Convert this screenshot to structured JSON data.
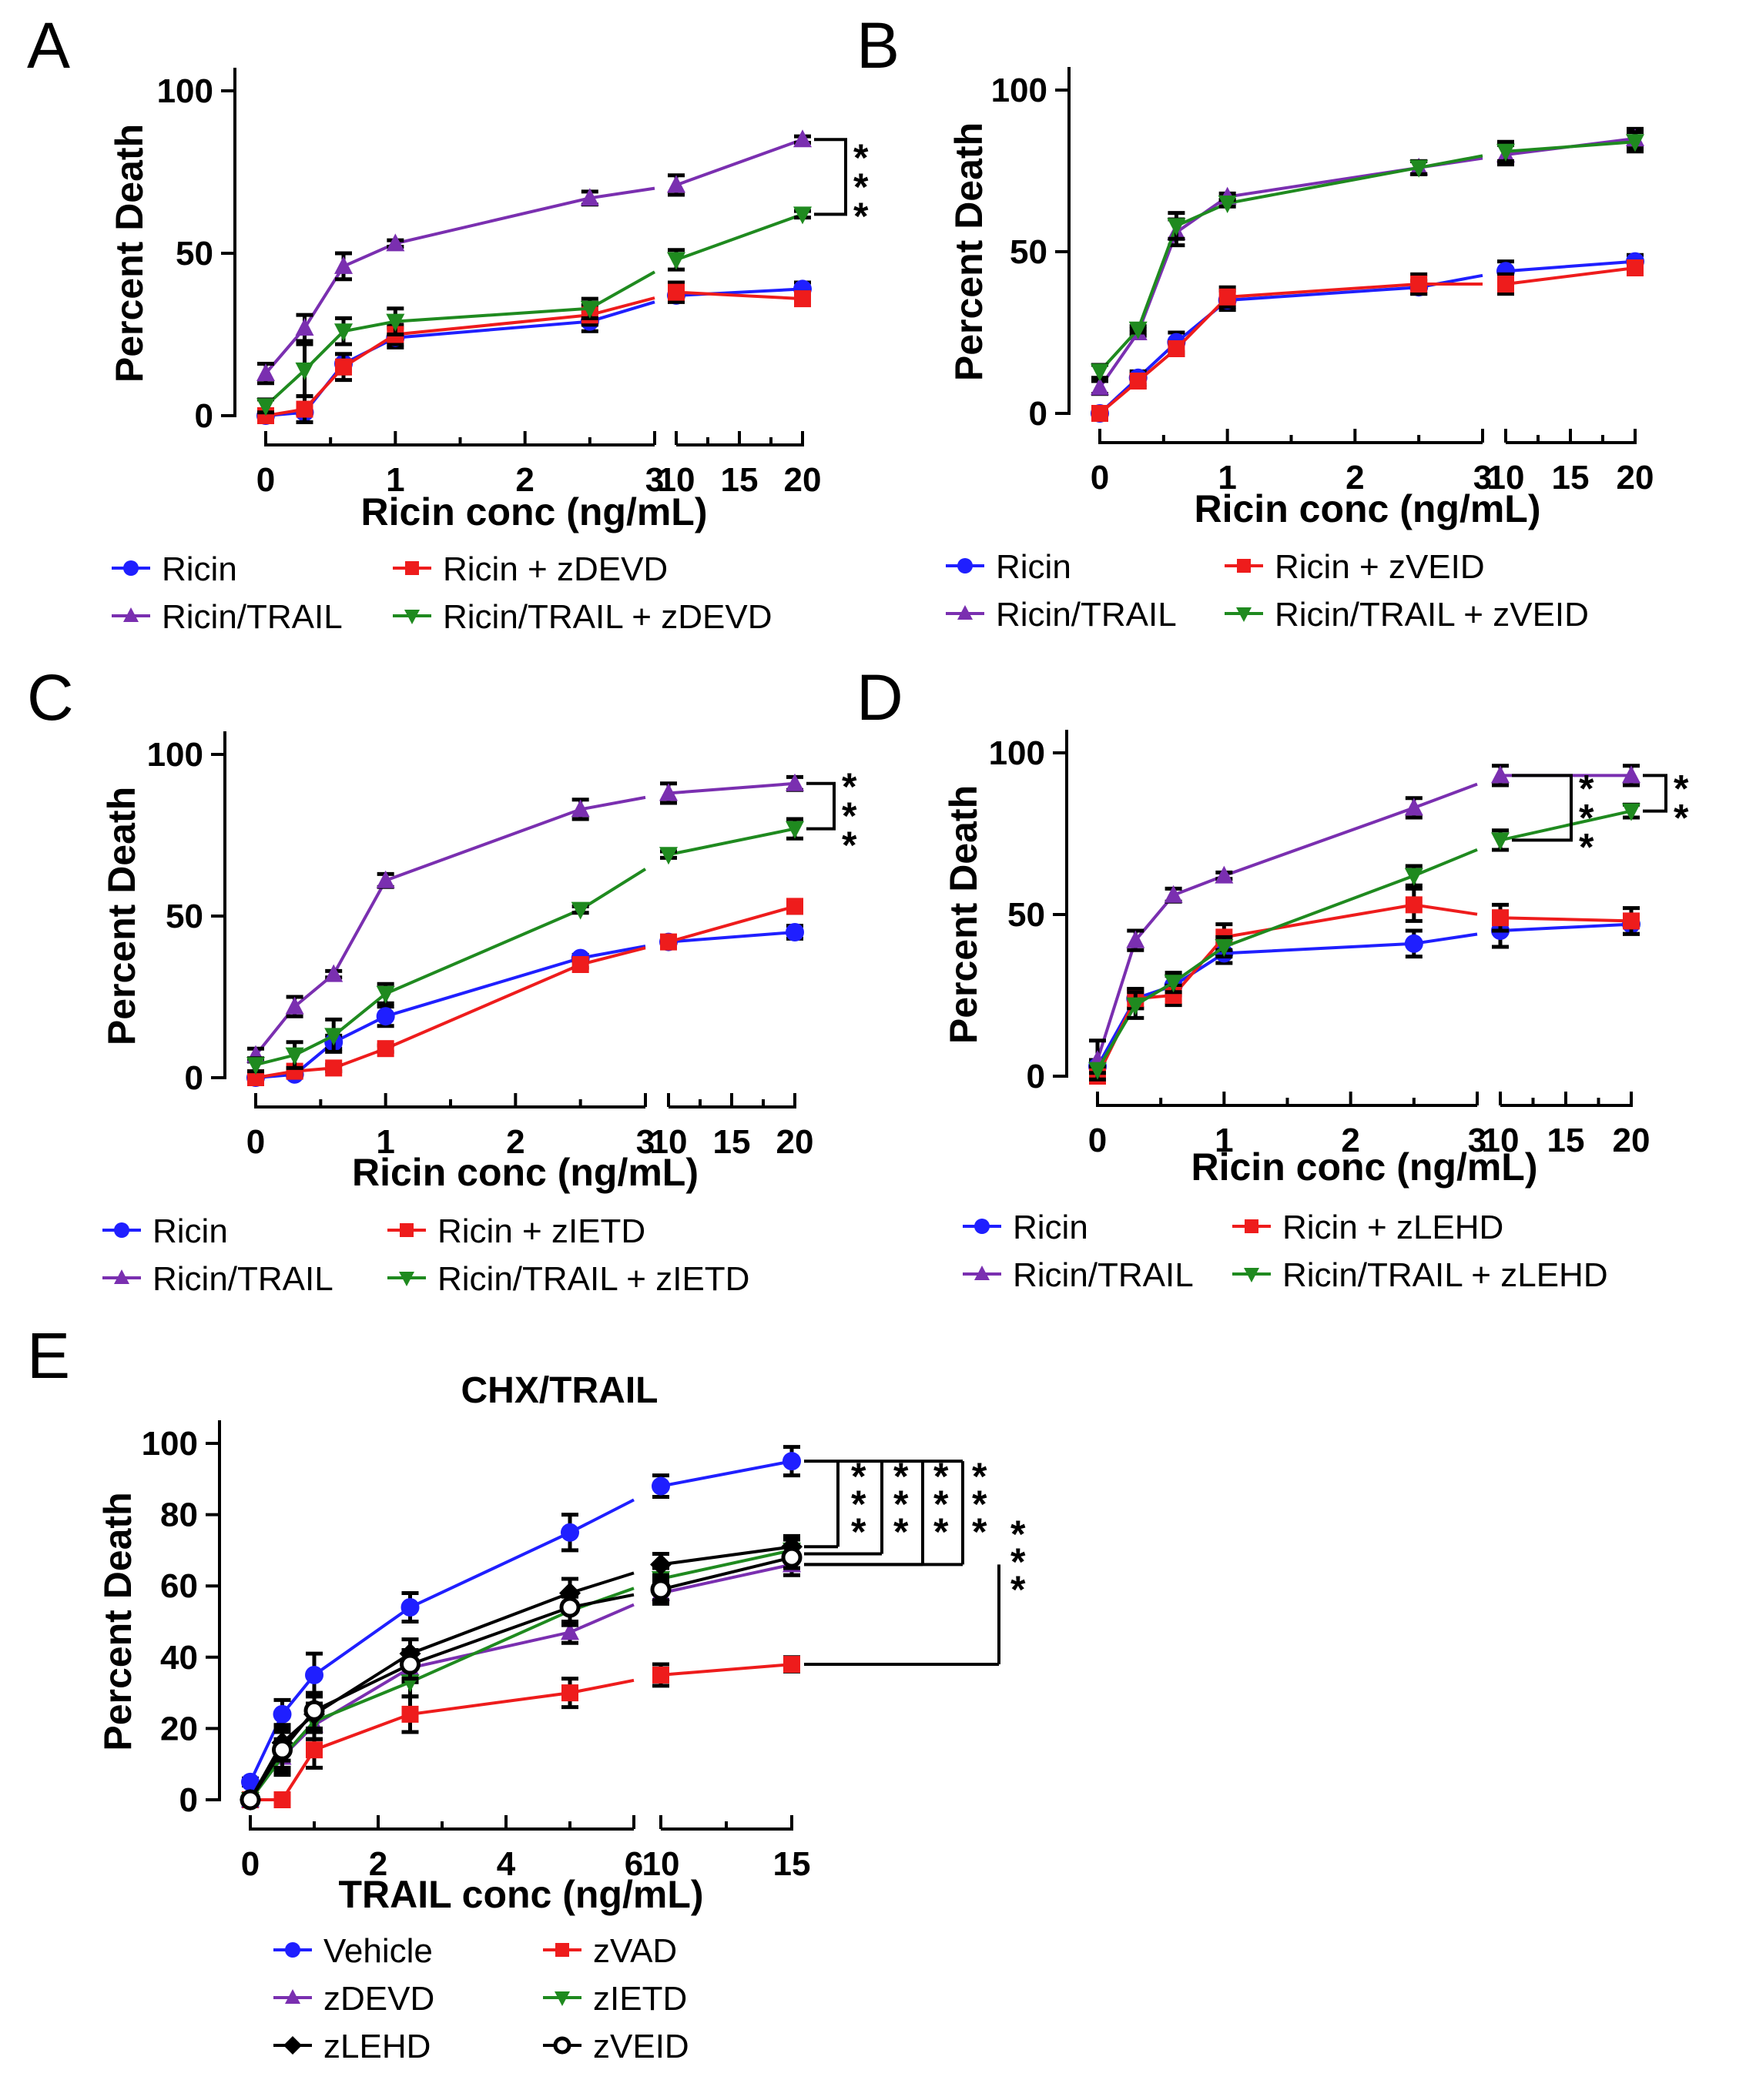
{
  "chart_data": [
    {
      "panel": "A",
      "type": "line",
      "title": "",
      "xlabel": "Ricin conc (ng/mL)",
      "ylabel": "Percent Death",
      "ylim": [
        0,
        100
      ],
      "yticks": [
        "0",
        "50",
        "100"
      ],
      "x_segments": [
        {
          "range": [
            0,
            3
          ],
          "ticks": [
            "0",
            "1",
            "2",
            "3"
          ]
        },
        {
          "range": [
            10,
            20
          ],
          "ticks": [
            "10",
            "15",
            "20"
          ]
        }
      ],
      "x": [
        0,
        0.3,
        0.6,
        1,
        2.5,
        10,
        20
      ],
      "series": [
        {
          "name": "Ricin",
          "marker": "circle",
          "color": "#1f1fff",
          "values": [
            0,
            1,
            16,
            24,
            29,
            37,
            39
          ],
          "err": [
            1,
            1,
            3,
            3,
            3,
            2,
            2
          ]
        },
        {
          "name": "Ricin + zDEVD",
          "marker": "square",
          "color": "#ee1c1c",
          "values": [
            0,
            2,
            15,
            25,
            31,
            38,
            36
          ],
          "err": [
            1,
            4,
            4,
            3,
            3,
            3,
            2
          ]
        },
        {
          "name": "Ricin/TRAIL",
          "marker": "triangle-up",
          "color": "#7a2fb0",
          "values": [
            13,
            27,
            46,
            53,
            67,
            71,
            85
          ],
          "err": [
            3,
            4,
            4,
            1,
            2,
            3,
            1
          ]
        },
        {
          "name": "Ricin/TRAIL + zDEVD",
          "marker": "triangle-down",
          "color": "#1f8a1f",
          "values": [
            3,
            14,
            26,
            29,
            33,
            48,
            62
          ],
          "err": [
            2,
            8,
            4,
            4,
            3,
            3,
            1
          ]
        }
      ],
      "significance": [
        "***"
      ],
      "legend": "bottom"
    },
    {
      "panel": "B",
      "type": "line",
      "title": "",
      "xlabel": "Ricin conc (ng/mL)",
      "ylabel": "Percent Death",
      "ylim": [
        0,
        100
      ],
      "yticks": [
        "0",
        "50",
        "100"
      ],
      "x_segments": [
        {
          "range": [
            0,
            3
          ],
          "ticks": [
            "0",
            "1",
            "2",
            "3"
          ]
        },
        {
          "range": [
            10,
            20
          ],
          "ticks": [
            "10",
            "15",
            "20"
          ]
        }
      ],
      "x": [
        0,
        0.3,
        0.6,
        1,
        2.5,
        10,
        20
      ],
      "series": [
        {
          "name": "Ricin",
          "marker": "circle",
          "color": "#1f1fff",
          "values": [
            0,
            11,
            22,
            35,
            39,
            44,
            47
          ],
          "err": [
            1,
            2,
            3,
            3,
            2,
            3,
            2
          ]
        },
        {
          "name": "Ricin + zVEID",
          "marker": "square",
          "color": "#ee1c1c",
          "values": [
            0,
            10,
            20,
            36,
            40,
            40,
            45
          ],
          "err": [
            1,
            2,
            2,
            3,
            3,
            3,
            2
          ]
        },
        {
          "name": "Ricin/TRAIL",
          "marker": "triangle-up",
          "color": "#7a2fb0",
          "values": [
            8,
            25,
            56,
            67,
            76,
            80,
            85
          ],
          "err": [
            2,
            1,
            4,
            1,
            2,
            3,
            3
          ]
        },
        {
          "name": "Ricin/TRAIL + zVEID",
          "marker": "triangle-down",
          "color": "#1f8a1f",
          "values": [
            13,
            26,
            58,
            65,
            76,
            81,
            84
          ],
          "err": [
            2,
            1,
            4,
            1,
            2,
            3,
            3
          ]
        }
      ],
      "significance": [],
      "legend": "bottom"
    },
    {
      "panel": "C",
      "type": "line",
      "title": "",
      "xlabel": "Ricin conc (ng/mL)",
      "ylabel": "Percent Death",
      "ylim": [
        0,
        100
      ],
      "yticks": [
        "0",
        "50",
        "100"
      ],
      "x_segments": [
        {
          "range": [
            0,
            3
          ],
          "ticks": [
            "0",
            "1",
            "2",
            "3"
          ]
        },
        {
          "range": [
            10,
            20
          ],
          "ticks": [
            "10",
            "15",
            "20"
          ]
        }
      ],
      "x": [
        0,
        0.3,
        0.6,
        1,
        2.5,
        10,
        20
      ],
      "series": [
        {
          "name": "Ricin",
          "marker": "circle",
          "color": "#1f1fff",
          "values": [
            0,
            1,
            11,
            19,
            37,
            42,
            45
          ],
          "err": [
            1,
            1,
            2,
            3,
            1,
            1,
            2
          ]
        },
        {
          "name": "Ricin + zIETD",
          "marker": "square",
          "color": "#ee1c1c",
          "values": [
            0,
            2,
            3,
            9,
            35,
            42,
            53
          ],
          "err": [
            1,
            1,
            1,
            1,
            1,
            1,
            2
          ]
        },
        {
          "name": "Ricin/TRAIL",
          "marker": "triangle-up",
          "color": "#7a2fb0",
          "values": [
            7,
            22,
            32,
            61,
            83,
            88,
            91
          ],
          "err": [
            2,
            3,
            1,
            2,
            3,
            3,
            2
          ]
        },
        {
          "name": "Ricin/TRAIL + zIETD",
          "marker": "triangle-down",
          "color": "#1f8a1f",
          "values": [
            4,
            7,
            13,
            26,
            52,
            69,
            77
          ],
          "err": [
            2,
            4,
            5,
            3,
            1,
            1,
            3
          ]
        }
      ],
      "significance": [
        "***"
      ],
      "legend": "bottom"
    },
    {
      "panel": "D",
      "type": "line",
      "title": "",
      "xlabel": "Ricin conc (ng/mL)",
      "ylabel": "Percent Death",
      "ylim": [
        0,
        100
      ],
      "yticks": [
        "0",
        "50",
        "100"
      ],
      "x_segments": [
        {
          "range": [
            0,
            3
          ],
          "ticks": [
            "0",
            "1",
            "2",
            "3"
          ]
        },
        {
          "range": [
            10,
            20
          ],
          "ticks": [
            "10",
            "15",
            "20"
          ]
        }
      ],
      "x": [
        0,
        0.3,
        0.6,
        1,
        2.5,
        10,
        20
      ],
      "series": [
        {
          "name": "Ricin",
          "marker": "circle",
          "color": "#1f1fff",
          "values": [
            3,
            24,
            28,
            38,
            41,
            45,
            47
          ],
          "err": [
            2,
            3,
            3,
            3,
            4,
            5,
            3
          ]
        },
        {
          "name": "Ricin + zLEHD",
          "marker": "square",
          "color": "#ee1c1c",
          "values": [
            0,
            24,
            25,
            43,
            53,
            49,
            48
          ],
          "err": [
            1,
            3,
            3,
            4,
            5,
            4,
            4
          ]
        },
        {
          "name": "Ricin/TRAIL",
          "marker": "triangle-up",
          "color": "#7a2fb0",
          "values": [
            5,
            42,
            56,
            62,
            83,
            93,
            93
          ],
          "err": [
            6,
            3,
            2,
            1,
            3,
            3,
            3
          ]
        },
        {
          "name": "Ricin/TRAIL + zLEHD",
          "marker": "triangle-down",
          "color": "#1f8a1f",
          "values": [
            2,
            22,
            29,
            40,
            62,
            73,
            82
          ],
          "err": [
            1,
            4,
            3,
            3,
            3,
            3,
            2
          ]
        }
      ],
      "significance": [
        "***",
        "**"
      ],
      "legend": "bottom"
    },
    {
      "panel": "E",
      "type": "line",
      "title": "CHX/TRAIL",
      "xlabel": "TRAIL conc (ng/mL)",
      "ylabel": "Percent Death",
      "ylim": [
        0,
        100
      ],
      "yticks": [
        "0",
        "20",
        "40",
        "60",
        "80",
        "100"
      ],
      "x_segments": [
        {
          "range": [
            0,
            6
          ],
          "ticks": [
            "0",
            "2",
            "4",
            "6"
          ]
        },
        {
          "range": [
            10,
            15
          ],
          "ticks": [
            "10",
            "15"
          ]
        }
      ],
      "x": [
        0,
        0.5,
        1,
        2.5,
        5,
        10,
        15
      ],
      "series": [
        {
          "name": "Vehicle",
          "marker": "circle",
          "color": "#1f1fff",
          "values": [
            5,
            24,
            35,
            54,
            75,
            88,
            95
          ],
          "err": [
            1,
            4,
            6,
            4,
            5,
            3,
            4
          ]
        },
        {
          "name": "zVAD",
          "marker": "square",
          "color": "#ee1c1c",
          "values": [
            0,
            0,
            14,
            24,
            30,
            35,
            38
          ],
          "err": [
            1,
            1,
            5,
            5,
            4,
            3,
            2
          ]
        },
        {
          "name": "zDEVD",
          "marker": "triangle-up",
          "color": "#7a2fb0",
          "values": [
            0,
            12,
            21,
            37,
            47,
            58,
            66
          ],
          "err": [
            1,
            4,
            4,
            4,
            3,
            3,
            3
          ]
        },
        {
          "name": "zIETD",
          "marker": "triangle-down",
          "color": "#1f8a1f",
          "values": [
            0,
            12,
            22,
            33,
            53,
            62,
            70
          ],
          "err": [
            1,
            5,
            5,
            4,
            4,
            3,
            3
          ]
        },
        {
          "name": "zLEHD",
          "marker": "diamond",
          "color": "#000000",
          "values": [
            0,
            16,
            24,
            41,
            58,
            66,
            71
          ],
          "err": [
            1,
            5,
            5,
            4,
            4,
            3,
            3
          ]
        },
        {
          "name": "zVEID",
          "marker": "circle-open",
          "color": "#000000",
          "values": [
            0,
            14,
            25,
            38,
            54,
            59,
            68
          ],
          "err": [
            1,
            5,
            5,
            4,
            4,
            3,
            3
          ]
        }
      ],
      "significance": [
        "***",
        "***",
        "***",
        "***",
        "***"
      ],
      "legend": "bottom"
    }
  ]
}
